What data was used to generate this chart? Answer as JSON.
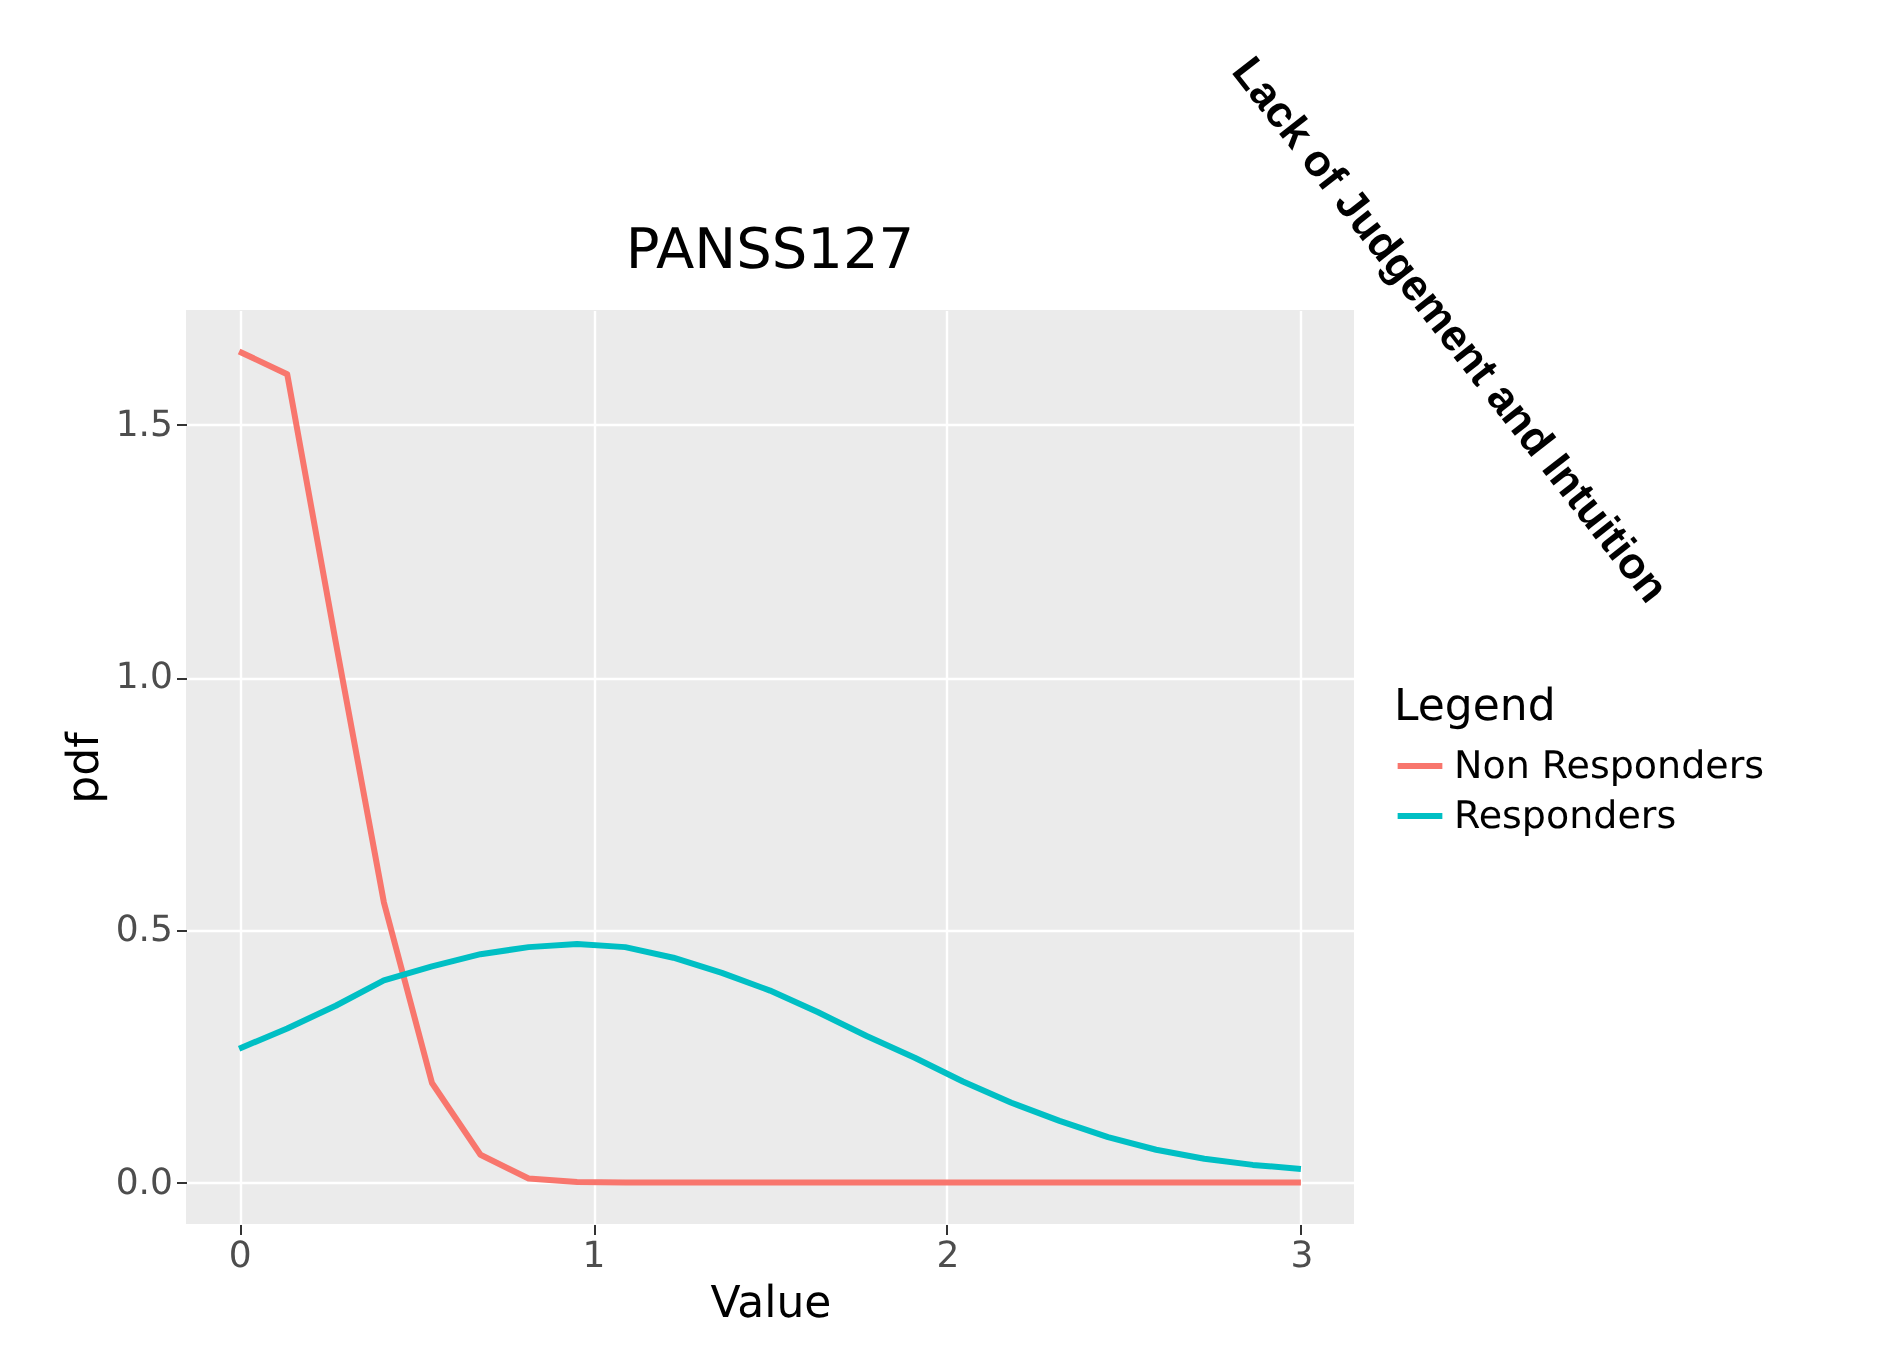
{
  "chart_data": {
    "type": "line",
    "title": "PANSS127",
    "xlabel": "Value",
    "ylabel": "pdf",
    "legend_title": "Legend",
    "legend": "right",
    "grid": true,
    "annotations": [
      "Lack of Judgement and Intuition"
    ],
    "x": [
      0,
      0.136,
      0.273,
      0.409,
      0.545,
      0.682,
      0.818,
      0.955,
      1.091,
      1.227,
      1.364,
      1.5,
      1.636,
      1.773,
      1.909,
      2.045,
      2.182,
      2.318,
      2.455,
      2.591,
      2.727,
      2.864,
      3
    ],
    "xlim": [
      -0.15,
      3.15
    ],
    "xticks": [
      0,
      1,
      2,
      3
    ],
    "ylim": [
      -0.082,
      1.727
    ],
    "yticks": [
      {
        "value": 0,
        "label": "0.0"
      },
      0.5,
      {
        "value": 1,
        "label": "1.0"
      },
      1.5
    ],
    "series": [
      {
        "name": "Non Responders",
        "color": "#f8766d",
        "values": [
          1.645,
          1.6,
          1.07,
          0.555,
          0.197,
          0.055,
          0.008,
          0.001,
          0,
          0,
          0,
          0,
          0,
          0,
          0,
          0,
          0,
          0,
          0,
          0,
          0,
          0,
          0
        ]
      },
      {
        "name": "Responders",
        "color": "#00bfc4",
        "values": [
          0.265,
          0.305,
          0.35,
          0.4,
          0.428,
          0.452,
          0.466,
          0.472,
          0.466,
          0.445,
          0.415,
          0.38,
          0.337,
          0.29,
          0.247,
          0.2,
          0.158,
          0.122,
          0.09,
          0.065,
          0.047,
          0.035,
          0.027
        ]
      }
    ]
  }
}
